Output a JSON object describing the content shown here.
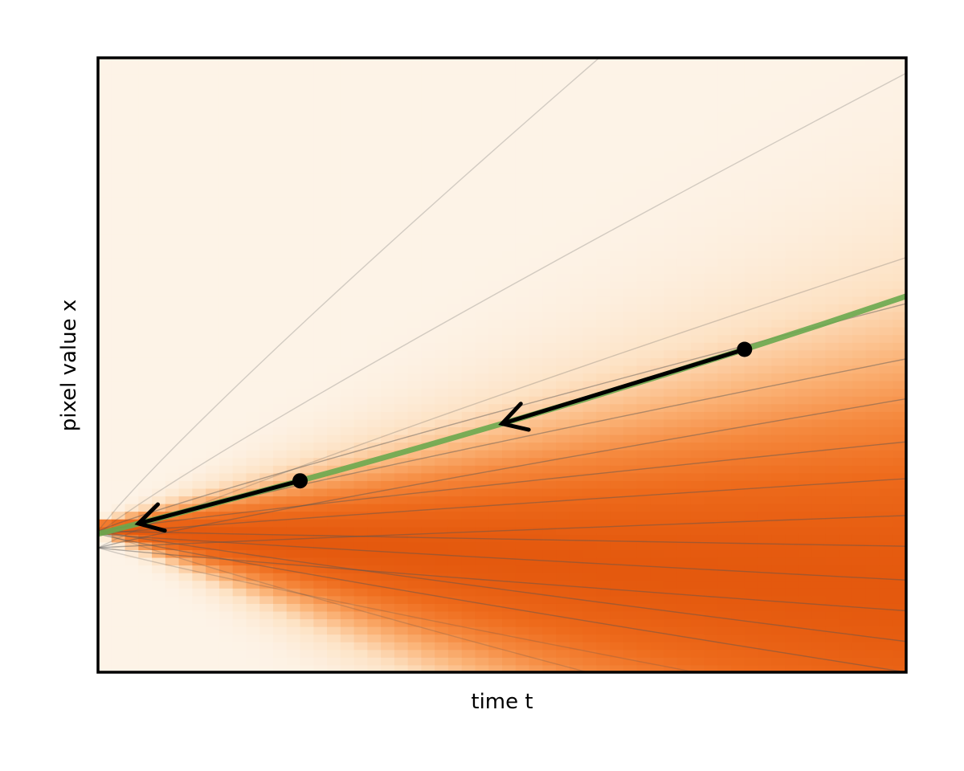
{
  "chart_data": {
    "type": "line",
    "title": "",
    "xlabel": "time t",
    "ylabel": "pixel value x",
    "xlim": [
      0,
      1
    ],
    "ylim": [
      -0.45,
      1.55
    ],
    "grid": false,
    "legend": "none",
    "background_density": {
      "description_type": "heatmap",
      "colormap": [
        "#fdf3e7",
        "#fde2c4",
        "#fbb57a",
        "#f5893e",
        "#ee6b1c",
        "#e4590e"
      ],
      "center_slope": -0.18,
      "spread_base": 0.012,
      "spread_slope": 0.55,
      "peak_offset": 0.025
    },
    "flow_lines": {
      "endpoints_at_t1": [
        2.4,
        1.5,
        0.9,
        0.75,
        0.57,
        0.44,
        0.3,
        0.18,
        0.06,
        -0.04,
        -0.15,
        -0.25,
        -0.35,
        -0.45,
        -0.58,
        -0.72
      ],
      "origins_at_t0": [
        0.02,
        0.0,
        -0.09
      ],
      "color": "#555555"
    },
    "series": [
      {
        "type": "trajectory",
        "color": "#6aa84f",
        "x": [
          0.0,
          0.1,
          0.2,
          0.3,
          0.4,
          0.5,
          0.6,
          0.7,
          0.8,
          0.9,
          1.0
        ],
        "y": [
          0.0,
          0.068,
          0.138,
          0.209,
          0.283,
          0.359,
          0.437,
          0.518,
          0.601,
          0.686,
          0.774
        ]
      }
    ],
    "points": [
      {
        "x": 0.25,
        "y": 0.173
      },
      {
        "x": 0.8,
        "y": 0.601
      }
    ],
    "arrows": [
      {
        "from": [
          0.8,
          0.601
        ],
        "to": [
          0.5,
          0.359
        ]
      },
      {
        "from": [
          0.25,
          0.173
        ],
        "to": [
          0.05,
          0.034
        ]
      }
    ]
  }
}
